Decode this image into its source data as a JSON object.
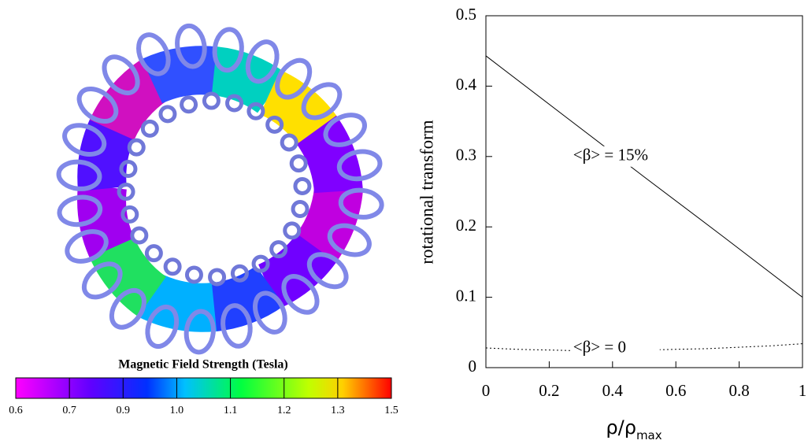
{
  "colorbar": {
    "title": "Magnetic Field Strength (Tesla)",
    "labels": [
      "0.6",
      "0.7",
      "0.9",
      "1.0",
      "1.1",
      "1.2",
      "1.3",
      "1.5"
    ]
  },
  "chart_data": {
    "type": "line",
    "ylabel": "rotational transform",
    "xlabel": "ρ/ρ",
    "xlabel_sub": "max",
    "xlim": [
      0,
      1
    ],
    "ylim": [
      0,
      0.5
    ],
    "xticks": [
      0,
      0.2,
      0.4,
      0.6,
      0.8,
      1
    ],
    "yticks": [
      0,
      0.1,
      0.2,
      0.3,
      0.4,
      0.5
    ],
    "series": [
      {
        "name": "<β> = 15%",
        "color": "#000000",
        "style": "solid",
        "x": [
          0,
          0.25,
          0.5,
          0.75,
          1
        ],
        "values": [
          0.443,
          0.357,
          0.271,
          0.186,
          0.1
        ]
      },
      {
        "name": "<β> = 0",
        "color": "#000000",
        "style": "dotted",
        "x": [
          0,
          0.1,
          0.2,
          0.3,
          0.4,
          0.5,
          0.6,
          0.7,
          0.8,
          0.9,
          1
        ],
        "values": [
          0.028,
          0.026,
          0.025,
          0.024,
          0.024,
          0.025,
          0.026,
          0.027,
          0.029,
          0.031,
          0.034
        ]
      }
    ]
  }
}
